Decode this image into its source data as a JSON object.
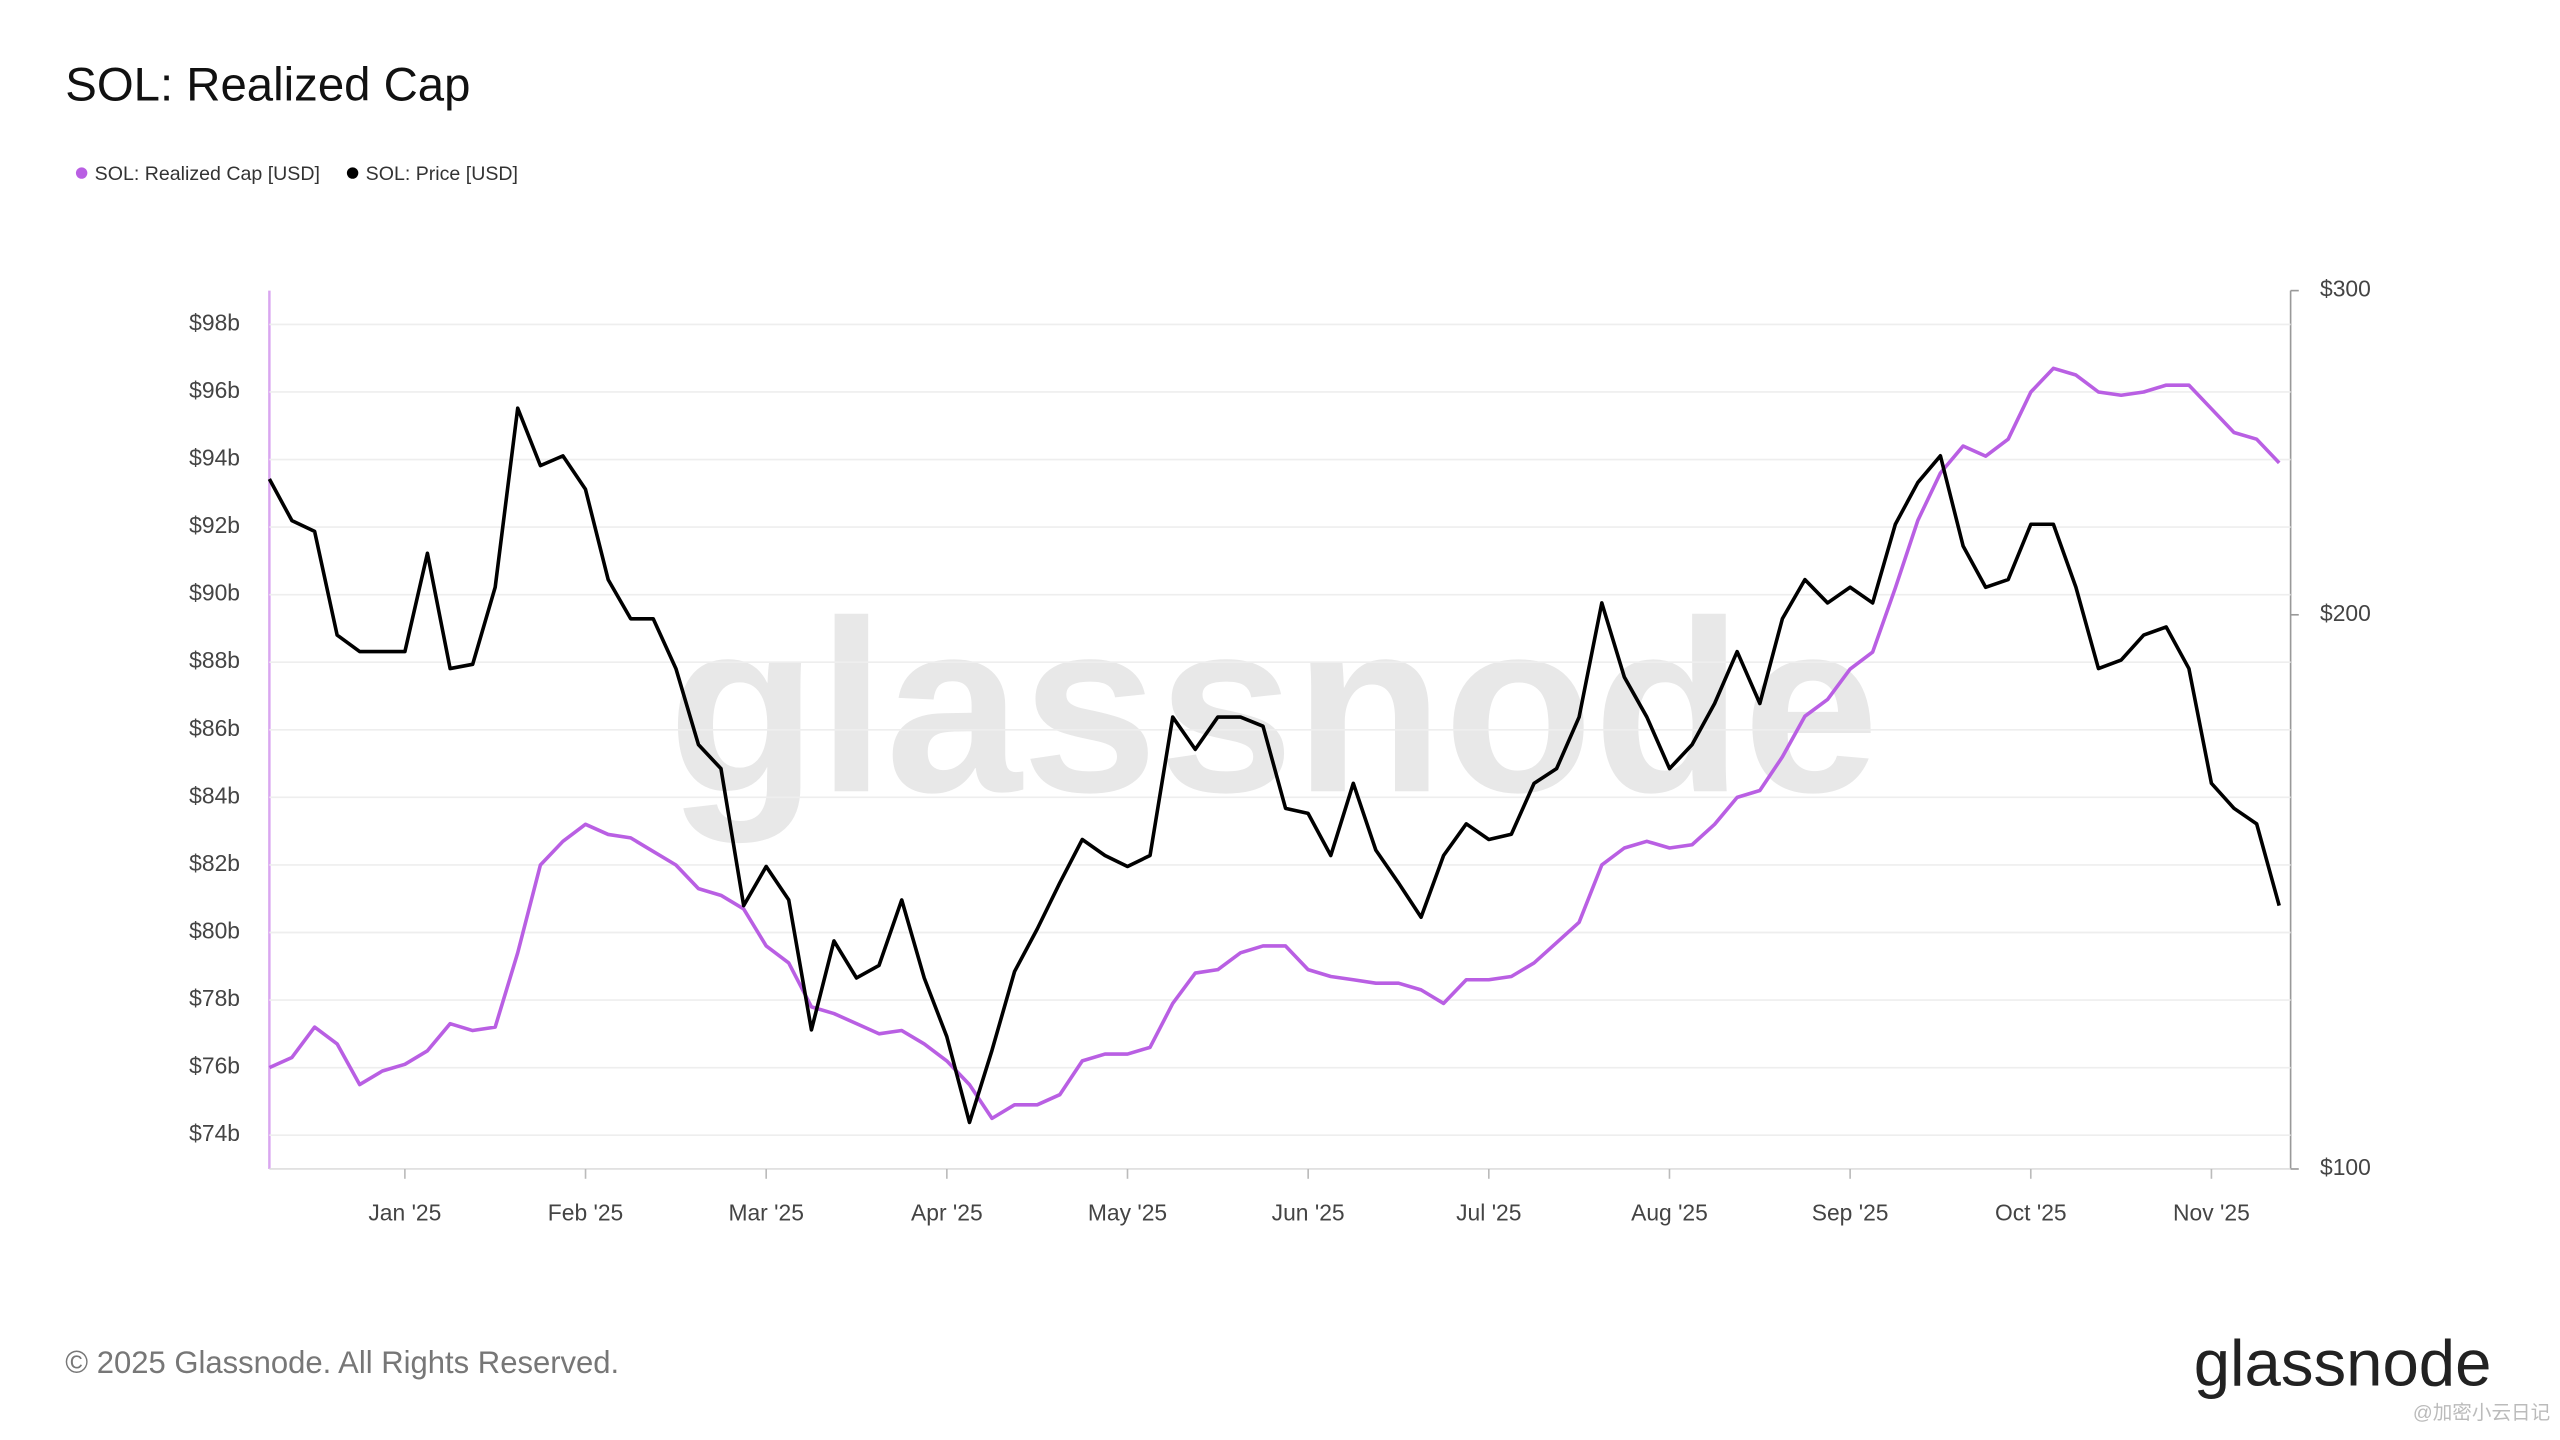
{
  "chart_data": {
    "type": "line",
    "title": "SOL: Realized Cap",
    "watermark": "glassnode",
    "footer": "© 2025 Glassnode. All Rights Reserved.",
    "brand": "glassnode",
    "overlay_text": "@加密小云日记",
    "legend": "top-left",
    "grid": true,
    "categories": [
      null,
      null,
      null,
      null,
      null,
      null,
      "Jan '25",
      null,
      null,
      null,
      null,
      null,
      null,
      null,
      "Feb '25",
      null,
      null,
      null,
      null,
      null,
      null,
      null,
      "Mar '25",
      null,
      null,
      null,
      null,
      null,
      null,
      null,
      "Apr '25",
      null,
      null,
      null,
      null,
      null,
      null,
      null,
      "May '25",
      null,
      null,
      null,
      null,
      null,
      null,
      null,
      "Jun '25",
      null,
      null,
      null,
      null,
      null,
      null,
      null,
      "Jul '25",
      null,
      null,
      null,
      null,
      null,
      null,
      null,
      "Aug '25",
      null,
      null,
      null,
      null,
      null,
      null,
      null,
      "Sep '25",
      null,
      null,
      null,
      null,
      null,
      null,
      null,
      "Oct '25",
      null,
      null,
      null,
      null,
      null,
      null,
      null,
      "Nov '25",
      null,
      null,
      null
    ],
    "ylim": [
      73,
      99
    ],
    "yticks": [
      {
        "value": 74,
        "label": "$74b"
      },
      {
        "value": 76,
        "label": "$76b"
      },
      {
        "value": 78,
        "label": "$78b"
      },
      {
        "value": 80,
        "label": "$80b"
      },
      {
        "value": 82,
        "label": "$82b"
      },
      {
        "value": 84,
        "label": "$84b"
      },
      {
        "value": 86,
        "label": "$86b"
      },
      {
        "value": 88,
        "label": "$88b"
      },
      {
        "value": 90,
        "label": "$90b"
      },
      {
        "value": 92,
        "label": "$92b"
      },
      {
        "value": 94,
        "label": "$94b"
      },
      {
        "value": 96,
        "label": "$96b"
      },
      {
        "value": 98,
        "label": "$98b"
      }
    ],
    "y2lim": [
      100,
      300
    ],
    "y2log": true,
    "y2ticks": [
      {
        "value": 100,
        "label": "$100"
      },
      {
        "value": 200,
        "label": "$200"
      },
      {
        "value": 300,
        "label": "$300"
      }
    ],
    "series": [
      {
        "name": "SOL: Realized Cap [USD]",
        "color": "#b95fe3",
        "values": [
          76.0,
          76.3,
          77.2,
          76.7,
          75.5,
          75.9,
          76.1,
          76.5,
          77.3,
          77.1,
          77.2,
          79.4,
          82.0,
          82.7,
          83.2,
          82.9,
          82.8,
          82.4,
          82.0,
          81.3,
          81.1,
          80.7,
          79.6,
          79.1,
          77.8,
          77.6,
          77.3,
          77.0,
          77.1,
          76.7,
          76.2,
          75.5,
          74.5,
          74.9,
          74.9,
          75.2,
          76.2,
          76.4,
          76.4,
          76.6,
          77.9,
          78.8,
          78.9,
          79.4,
          79.6,
          79.6,
          78.9,
          78.7,
          78.6,
          78.5,
          78.5,
          78.3,
          77.9,
          78.6,
          78.6,
          78.7,
          79.1,
          79.7,
          80.3,
          82.0,
          82.5,
          82.7,
          82.5,
          82.6,
          83.2,
          84.0,
          84.2,
          85.2,
          86.4,
          86.9,
          87.8,
          88.3,
          90.2,
          92.2,
          93.6,
          94.4,
          94.1,
          94.6,
          96.0,
          96.7,
          96.5,
          96.0,
          95.9,
          96.0,
          96.2,
          96.2,
          95.5,
          94.8,
          94.6,
          93.9
        ]
      },
      {
        "name": "SOL: Price [USD]",
        "color": "#000000",
        "axis": "y2",
        "values": [
          237,
          225,
          222,
          195,
          191,
          191,
          191,
          216,
          187,
          188,
          207,
          259,
          241,
          244,
          234,
          209,
          199,
          199,
          187,
          170,
          165,
          139,
          146,
          140,
          119,
          133,
          127,
          129,
          140,
          127,
          118,
          106,
          116,
          128,
          135,
          143,
          151,
          148,
          146,
          148,
          176,
          169,
          176,
          176,
          174,
          157,
          156,
          148,
          162,
          149,
          143,
          137,
          148,
          154,
          151,
          152,
          162,
          165,
          176,
          203,
          185,
          176,
          165,
          170,
          179,
          191,
          179,
          199,
          209,
          203,
          207,
          203,
          224,
          236,
          244,
          218,
          207,
          209,
          224,
          224,
          207,
          187,
          189,
          195,
          197,
          187,
          162,
          157,
          154,
          139
        ]
      }
    ]
  }
}
